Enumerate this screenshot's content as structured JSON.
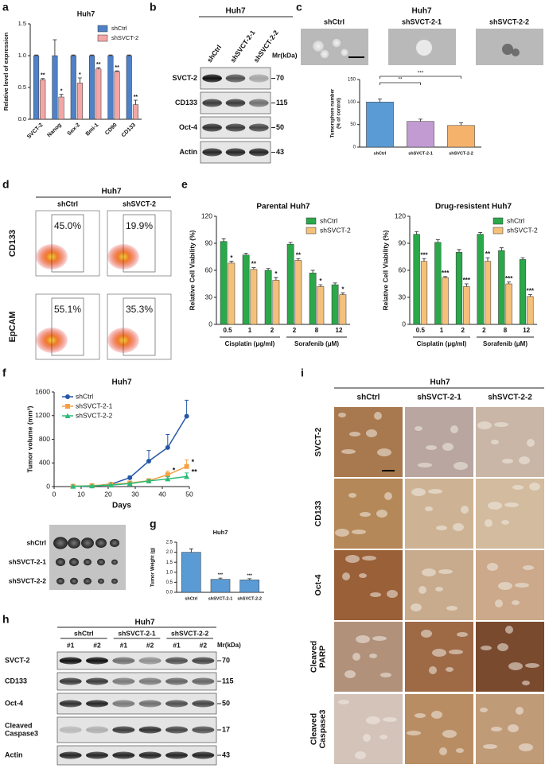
{
  "panel_labels": [
    "a",
    "b",
    "c",
    "d",
    "e",
    "f",
    "g",
    "h",
    "i"
  ],
  "chart_data": [
    {
      "type": "bar",
      "title": "Huh7",
      "ylabel": [
        "Relative level of expression"
      ],
      "categories": [
        "SVCT-2",
        "Nanog",
        "Sox-2",
        "Bmi-1",
        "CD90",
        "CD133"
      ],
      "series": [
        {
          "name": "shCtrl",
          "color": "#4f81c7",
          "values": [
            1,
            1,
            1,
            1,
            1,
            1
          ],
          "errors": [
            0.01,
            0.25,
            0.01,
            0.01,
            0.01,
            0.01
          ]
        },
        {
          "name": "shSVCT-2",
          "color": "#f4a6a6",
          "values": [
            0.62,
            0.35,
            0.57,
            0.79,
            0.75,
            0.23
          ],
          "errors": [
            0.02,
            0.04,
            0.08,
            0.02,
            0.01,
            0.07
          ],
          "annotations": [
            "**",
            "*",
            "*",
            "**",
            "**",
            "**"
          ]
        }
      ],
      "ylim": [
        0,
        1.5
      ],
      "yticks": [
        {
          "value": 0,
          "label": "0.0"
        },
        {
          "value": 0.5,
          "label": "0.5"
        },
        {
          "value": 1,
          "label": "1.0"
        },
        {
          "value": 1.5,
          "label": "1.5"
        }
      ],
      "legend": "upper right"
    },
    {
      "type": "bar",
      "ylabel": [
        "Tumorsphere number",
        "(% of control)"
      ],
      "categories": [
        "shCtrl",
        "shSVCT-2-1",
        "shSVCT-2-2"
      ],
      "values": [
        100,
        57,
        48
      ],
      "errors": [
        7,
        5,
        6
      ],
      "colors": [
        "#5b9bd5",
        "#c39bd3",
        "#f5b26b"
      ],
      "ylim": [
        0,
        150
      ],
      "yticks": [
        0,
        50,
        100,
        150
      ],
      "significance": [
        {
          "label": "**",
          "groups": [
            "shCtrl",
            "shSVCT-2-1"
          ]
        },
        {
          "label": "***",
          "groups": [
            "shCtrl",
            "shSVCT-2-2"
          ]
        }
      ]
    },
    {
      "type": "bar",
      "title": "Parental Huh7",
      "ylabel": [
        "Relative Cell Viability (%)"
      ],
      "categories": [
        "0.5",
        "1",
        "2",
        "2",
        "8",
        "12"
      ],
      "group_labels": [
        "Cisplatin (μg/ml)",
        "Sorafenib (μM)"
      ],
      "series": [
        {
          "name": "shCtrl",
          "color": "#2aa84a",
          "values": [
            92,
            77,
            60,
            89,
            57,
            44
          ],
          "errors": [
            3,
            2,
            2,
            2,
            3,
            2
          ]
        },
        {
          "name": "shSVCT-2",
          "color": "#f5c07a",
          "values": [
            68,
            61,
            49,
            71,
            42,
            33
          ],
          "errors": [
            2,
            2,
            3,
            2,
            2,
            2
          ],
          "annotations": [
            "*",
            "**",
            "*",
            "**",
            "*",
            "*"
          ]
        }
      ],
      "ylim": [
        0,
        120
      ],
      "yticks": [
        0,
        30,
        60,
        90,
        120
      ],
      "legend": "upper right"
    },
    {
      "type": "bar",
      "title": "Drug-resistent Huh7",
      "ylabel": [
        "Relative Cell Viability (%)"
      ],
      "categories": [
        "0.5",
        "1",
        "2",
        "2",
        "8",
        "12"
      ],
      "group_labels": [
        "Cisplatin (μg/ml)",
        "Sorafenib (μM)"
      ],
      "series": [
        {
          "name": "shCtrl",
          "color": "#2aa84a",
          "values": [
            100,
            91,
            80,
            100,
            82,
            72
          ],
          "errors": [
            3,
            3,
            3,
            2,
            3,
            2
          ]
        },
        {
          "name": "shSVCT-2",
          "color": "#f5c07a",
          "values": [
            70,
            52,
            42,
            70,
            45,
            31
          ],
          "errors": [
            3,
            1,
            3,
            4,
            2,
            2
          ],
          "annotations": [
            "***",
            "***",
            "***",
            "**",
            "***",
            "***"
          ]
        }
      ],
      "ylim": [
        0,
        120
      ],
      "yticks": [
        0,
        30,
        60,
        90,
        120
      ],
      "legend": "upper right"
    },
    {
      "type": "line",
      "title": "Huh7",
      "xlabel": "Days",
      "ylabel": [
        "Tumor volume (mm³)"
      ],
      "x": [
        7,
        14,
        21,
        28,
        35,
        42,
        49
      ],
      "series": [
        {
          "name": "shCtrl",
          "color": "#2457a8",
          "values": [
            5,
            10,
            40,
            150,
            430,
            660,
            1190
          ],
          "errors": [
            0,
            5,
            10,
            30,
            180,
            220,
            270
          ]
        },
        {
          "name": "shSVCT-2-1",
          "color": "#f5a142",
          "values": [
            5,
            15,
            35,
            60,
            100,
            200,
            340
          ],
          "errors": [
            0,
            5,
            8,
            15,
            30,
            60,
            110
          ],
          "annotations": [
            null,
            null,
            null,
            null,
            null,
            "*",
            "*"
          ]
        },
        {
          "name": "shSVCT-2-2",
          "color": "#2dbb7a",
          "values": [
            5,
            12,
            25,
            50,
            95,
            130,
            170
          ],
          "errors": [
            0,
            5,
            8,
            12,
            20,
            40,
            60
          ],
          "annotations": [
            null,
            null,
            null,
            null,
            null,
            null,
            "**"
          ]
        }
      ],
      "xlim": [
        0,
        50
      ],
      "xticks": [
        0,
        10,
        20,
        30,
        40,
        50
      ],
      "ylim": [
        0,
        1600
      ],
      "yticks": [
        0,
        400,
        800,
        1200,
        1600
      ],
      "legend": "upper left"
    },
    {
      "type": "bar",
      "title": "Huh7",
      "ylabel": [
        "Tumor Weight (g)"
      ],
      "categories": [
        "shCtrl",
        "shSVCT-2-1",
        "shSVCT-2-2"
      ],
      "values": [
        2.0,
        0.65,
        0.62
      ],
      "errors": [
        0.17,
        0.06,
        0.06
      ],
      "annotations": [
        null,
        "***",
        "***"
      ],
      "color": "#5b9bd5",
      "ylim": [
        0,
        2.5
      ],
      "yticks": [
        {
          "value": 0,
          "label": "0.0"
        },
        {
          "value": 0.5,
          "label": "0.5"
        },
        {
          "value": 1,
          "label": "1.0"
        },
        {
          "value": 1.5,
          "label": "1.5"
        },
        {
          "value": 2,
          "label": "2.0"
        },
        {
          "value": 2.5,
          "label": "2.5"
        }
      ]
    }
  ],
  "blot_b": {
    "title": "Huh7",
    "lanes": [
      "shCtrl",
      "shSVCT-2-1",
      "shSVCT-2-2"
    ],
    "unit": "Mr(kDa)",
    "rows": [
      {
        "label": [
          "SVCT-2"
        ],
        "mw": "70"
      },
      {
        "label": [
          "CD133"
        ],
        "mw": "115"
      },
      {
        "label": [
          "Oct-4"
        ],
        "mw": "50"
      },
      {
        "label": [
          "Actin"
        ],
        "mw": "43"
      }
    ]
  },
  "spheres_c": {
    "title": "Huh7",
    "columns": [
      "shCtrl",
      "shSVCT-2-1",
      "shSVCT-2-2"
    ]
  },
  "flow_d": {
    "title": "Huh7",
    "columns": [
      "shCtrl",
      "shSVCT-2"
    ],
    "rows": [
      "CD133",
      "EpCAM"
    ],
    "percentages": [
      [
        "45.0%",
        "19.9%"
      ],
      [
        "55.1%",
        "35.3%"
      ]
    ]
  },
  "tumors_f": {
    "rows": [
      "shCtrl",
      "shSVCT-2-1",
      "shSVCT-2-2"
    ]
  },
  "blot_h": {
    "title": "Huh7",
    "groups": [
      "shCtrl",
      "shSVCT-2-1",
      "shSVCT-2-2"
    ],
    "lanes": [
      "#1",
      "#2"
    ],
    "unit": "Mr(kDa)",
    "rows": [
      {
        "label": [
          "SVCT-2"
        ],
        "mw": "70"
      },
      {
        "label": [
          "CD133"
        ],
        "mw": "115"
      },
      {
        "label": [
          "Oct-4"
        ],
        "mw": "50"
      },
      {
        "label": [
          "Cleaved",
          "Caspase3"
        ],
        "mw": "17"
      },
      {
        "label": [
          "Actin"
        ],
        "mw": "43"
      }
    ]
  },
  "ihc_i": {
    "title": "Huh7",
    "columns": [
      "shCtrl",
      "shSVCT-2-1",
      "shSVCT-2-2"
    ],
    "rows": [
      [
        "SVCT-2"
      ],
      [
        "CD133"
      ],
      [
        "Oct-4"
      ],
      [
        "Cleaved",
        "PARP"
      ],
      [
        "Cleaved",
        "Caspase3"
      ]
    ]
  }
}
